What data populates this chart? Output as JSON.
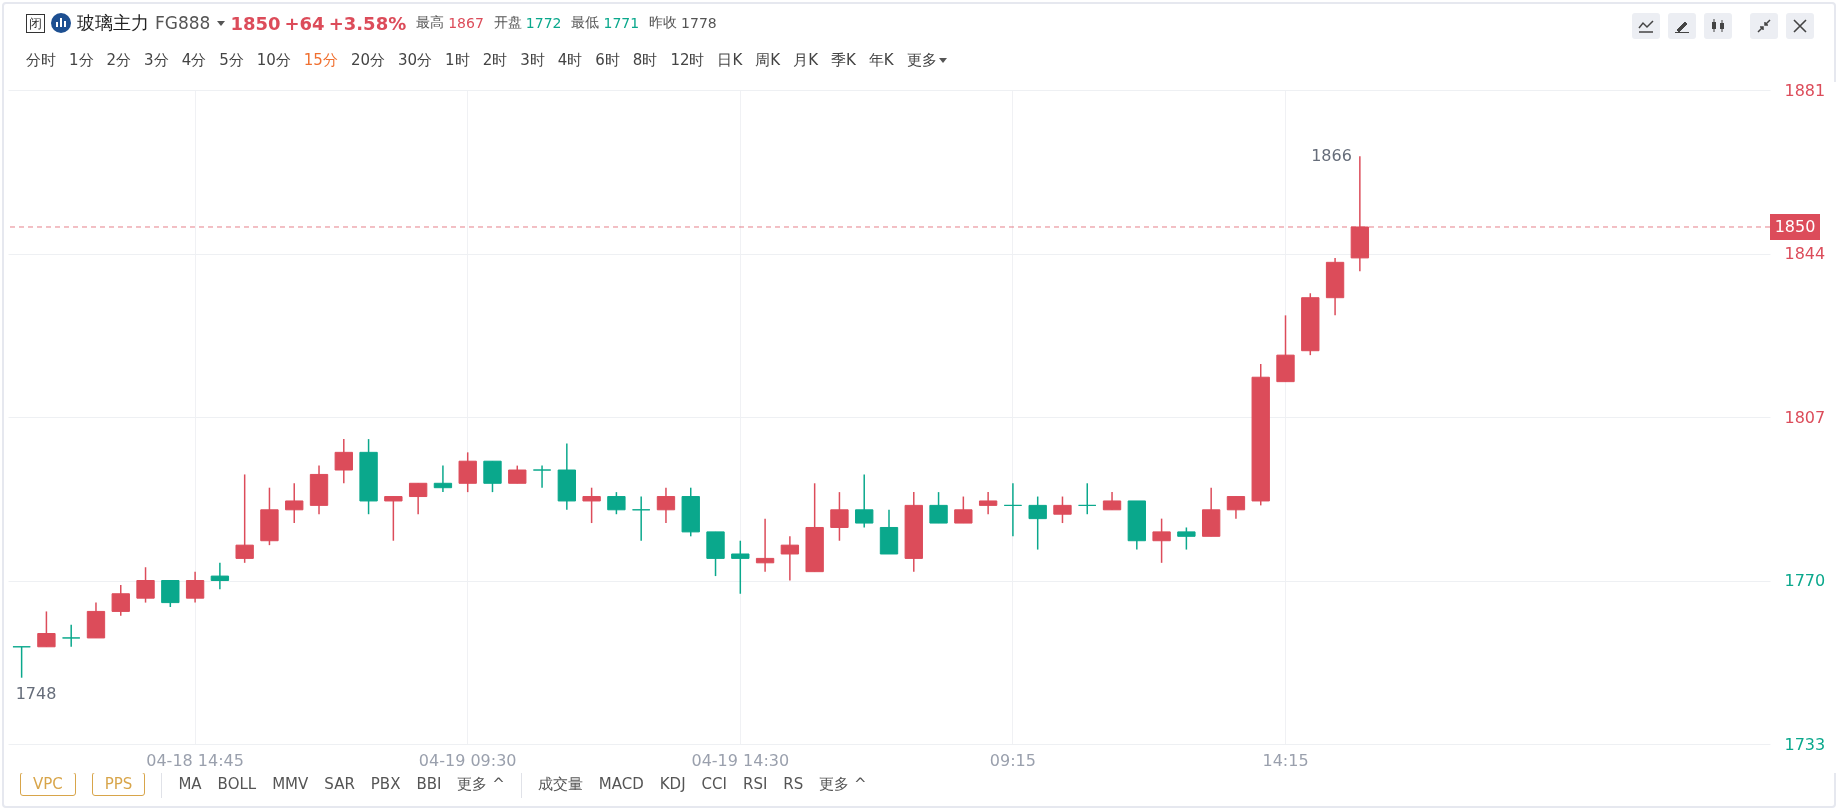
{
  "chart_data": {
    "type": "candlestick",
    "title": "玻璃主力",
    "subtitle": "FG888",
    "categories": [
      null,
      null,
      null,
      null,
      null,
      null,
      null,
      "04-18 14:45",
      null,
      null,
      null,
      null,
      null,
      null,
      null,
      null,
      null,
      null,
      "04-19 09:30",
      null,
      null,
      null,
      null,
      null,
      null,
      null,
      null,
      null,
      null,
      "04-19 14:30",
      null,
      null,
      null,
      null,
      null,
      null,
      null,
      null,
      null,
      null,
      "09:15",
      null,
      null,
      null,
      null,
      null,
      null,
      null,
      null,
      null,
      null,
      "14:15",
      null,
      null,
      null,
      null,
      null,
      null,
      null,
      null,
      null,
      null,
      null,
      null,
      null,
      null,
      null,
      null,
      null,
      null,
      null
    ],
    "ohlc": [
      [
        1755,
        1755,
        1748,
        1755
      ],
      [
        1755,
        1763,
        1755,
        1758
      ],
      [
        1757,
        1760,
        1755,
        1757
      ],
      [
        1757,
        1765,
        1757,
        1763
      ],
      [
        1763,
        1769,
        1762,
        1767
      ],
      [
        1766,
        1773,
        1765,
        1770
      ],
      [
        1770,
        1770,
        1764,
        1765
      ],
      [
        1766,
        1772,
        1765,
        1770
      ],
      [
        1771,
        1774,
        1768,
        1770
      ],
      [
        1775,
        1794,
        1774,
        1778
      ],
      [
        1779,
        1791,
        1778,
        1786
      ],
      [
        1786,
        1792,
        1783,
        1788
      ],
      [
        1787,
        1796,
        1785,
        1794
      ],
      [
        1795,
        1802,
        1792,
        1799
      ],
      [
        1799,
        1802,
        1785,
        1788
      ],
      [
        1788,
        1789,
        1779,
        1789
      ],
      [
        1789,
        1792,
        1785,
        1792
      ],
      [
        1792,
        1796,
        1790,
        1791
      ],
      [
        1792,
        1799,
        1790,
        1797
      ],
      [
        1797,
        1797,
        1790,
        1792
      ],
      [
        1792,
        1796,
        1792,
        1795
      ],
      [
        1795,
        1796,
        1791,
        1795
      ],
      [
        1795,
        1801,
        1786,
        1788
      ],
      [
        1788,
        1791,
        1783,
        1789
      ],
      [
        1789,
        1790,
        1785,
        1786
      ],
      [
        1786,
        1789,
        1779,
        1786
      ],
      [
        1786,
        1791,
        1783,
        1789
      ],
      [
        1789,
        1791,
        1780,
        1781
      ],
      [
        1781,
        1781,
        1771,
        1775
      ],
      [
        1776,
        1779,
        1767,
        1775
      ],
      [
        1774,
        1784,
        1772,
        1775
      ],
      [
        1776,
        1780,
        1770,
        1778
      ],
      [
        1772,
        1792,
        1772,
        1782
      ],
      [
        1782,
        1790,
        1779,
        1786
      ],
      [
        1786,
        1794,
        1782,
        1783
      ],
      [
        1782,
        1786,
        1776,
        1776
      ],
      [
        1775,
        1790,
        1772,
        1787
      ],
      [
        1787,
        1790,
        1783,
        1783
      ],
      [
        1783,
        1789,
        1783,
        1786
      ],
      [
        1787,
        1790,
        1785,
        1788
      ],
      [
        1787,
        1792,
        1780,
        1787
      ],
      [
        1787,
        1789,
        1777,
        1784
      ],
      [
        1785,
        1789,
        1783,
        1787
      ],
      [
        1787,
        1792,
        1785,
        1787
      ],
      [
        1786,
        1790,
        1786,
        1788
      ],
      [
        1788,
        1788,
        1777,
        1779
      ],
      [
        1779,
        1784,
        1774,
        1781
      ],
      [
        1781,
        1782,
        1777,
        1780
      ],
      [
        1780,
        1791,
        1780,
        1786
      ],
      [
        1786,
        1789,
        1784,
        1789
      ],
      [
        1788,
        1819,
        1787,
        1816
      ],
      [
        1815,
        1830,
        1815,
        1821
      ],
      [
        1822,
        1835,
        1821,
        1834
      ],
      [
        1834,
        1843,
        1830,
        1842
      ],
      [
        1843,
        1866,
        1840,
        1850
      ],
      null,
      null,
      null,
      null,
      null,
      null,
      null,
      null,
      null,
      null,
      null,
      null,
      null,
      null,
      null,
      null
    ],
    "colors": [
      "#0aa88c",
      "#dc4c5a",
      "#0aa88c",
      "#dc4c5a",
      "#dc4c5a",
      "#dc4c5a",
      "#0aa88c",
      "#dc4c5a",
      "#0aa88c",
      "#dc4c5a",
      "#dc4c5a",
      "#dc4c5a",
      "#dc4c5a",
      "#dc4c5a",
      "#0aa88c",
      "#dc4c5a",
      "#dc4c5a",
      "#0aa88c",
      "#dc4c5a",
      "#0aa88c",
      "#dc4c5a",
      "#0aa88c",
      "#0aa88c",
      "#dc4c5a",
      "#0aa88c",
      "#0aa88c",
      "#dc4c5a",
      "#0aa88c",
      "#0aa88c",
      "#0aa88c",
      "#dc4c5a",
      "#dc4c5a",
      "#dc4c5a",
      "#dc4c5a",
      "#0aa88c",
      "#0aa88c",
      "#dc4c5a",
      "#0aa88c",
      "#dc4c5a",
      "#dc4c5a",
      "#0aa88c",
      "#0aa88c",
      "#dc4c5a",
      "#0aa88c",
      "#dc4c5a",
      "#0aa88c",
      "#dc4c5a",
      "#0aa88c",
      "#dc4c5a",
      "#dc4c5a",
      "#dc4c5a",
      "#dc4c5a",
      "#dc4c5a",
      "#dc4c5a",
      "#dc4c5a",
      null,
      null,
      null,
      null,
      null,
      null,
      null,
      null,
      null,
      null,
      null,
      null,
      null,
      null,
      null,
      null
    ],
    "ylim": [
      1733,
      1881
    ],
    "yticks": [
      1733,
      1770,
      1807,
      1844,
      1881
    ],
    "grid": true,
    "ref_lines": [
      {
        "axis": "y",
        "value": 1850,
        "label": "1850",
        "color": "#dc4c5a",
        "line_style": "dashed"
      }
    ],
    "annotations": [
      "闭",
      "1850",
      "+64",
      "+3.58%",
      "最高",
      "1867",
      "开盘",
      "1772",
      "最低",
      "1771",
      "昨收",
      "1778",
      "分时",
      "1分",
      "2分",
      "3分",
      "4分",
      "5分",
      "10分",
      "15分",
      "20分",
      "30分",
      "1时",
      "2时",
      "3时",
      "4时",
      "6时",
      "8时",
      "12时",
      "日K",
      "周K",
      "月K",
      "季K",
      "年K",
      "更多",
      "VPC",
      "PPS",
      "MA",
      "BOLL",
      "MMV",
      "SAR",
      "PBX",
      "BBI",
      "更多 ^",
      "成交量",
      "MACD",
      "KDJ",
      "CCI",
      "RSI",
      "RS",
      "更多 ^",
      "1866",
      "1748"
    ]
  }
}
